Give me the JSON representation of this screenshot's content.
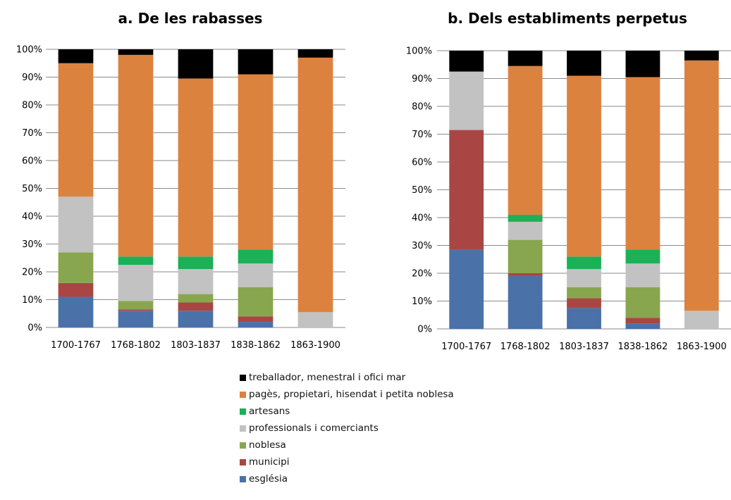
{
  "chart_data": {
    "type": "bar",
    "stacked": true,
    "y_unit": "percent",
    "ylim": [
      0,
      100
    ],
    "yticks": [
      "0%",
      "10%",
      "20%",
      "30%",
      "40%",
      "50%",
      "60%",
      "70%",
      "80%",
      "90%",
      "100%"
    ],
    "categories": [
      "1700-1767",
      "1768-1802",
      "1803-1837",
      "1838-1862",
      "1863-1900"
    ],
    "grid": true,
    "legend_position": "bottom",
    "series_meta": [
      {
        "name": "església",
        "color": "#4a72a8"
      },
      {
        "name": "municipi",
        "color": "#a94643"
      },
      {
        "name": "noblesa",
        "color": "#88a64e"
      },
      {
        "name": "professionals i comerciants",
        "color": "#c2c2c2"
      },
      {
        "name": "artesans",
        "color": "#1bb157"
      },
      {
        "name": "pagès, propietari, hisendat i petita noblesa",
        "color": "#dc823f"
      },
      {
        "name": "treballador, menestral i ofici mar",
        "color": "#000000"
      }
    ],
    "charts": [
      {
        "title": "a. De les rabasses",
        "series": [
          {
            "name": "església",
            "values": [
              11,
              6,
              6,
              2,
              0
            ]
          },
          {
            "name": "municipi",
            "values": [
              5,
              0.5,
              3,
              2,
              0
            ]
          },
          {
            "name": "noblesa",
            "values": [
              11,
              3,
              3,
              10.5,
              0
            ]
          },
          {
            "name": "professionals i comerciants",
            "values": [
              20,
              13,
              9,
              8.5,
              5.5
            ]
          },
          {
            "name": "artesans",
            "values": [
              0,
              3,
              4.5,
              5,
              0
            ]
          },
          {
            "name": "pagès, propietari, hisendat i petita noblesa",
            "values": [
              48,
              72.5,
              64,
              63,
              91.5
            ]
          },
          {
            "name": "treballador, menestral i ofici mar",
            "values": [
              5,
              2,
              10.5,
              9,
              3
            ]
          }
        ]
      },
      {
        "title": "b. Dels establiments perpetus",
        "series": [
          {
            "name": "església",
            "values": [
              28.5,
              19,
              7.5,
              2,
              0
            ]
          },
          {
            "name": "municipi",
            "values": [
              43,
              1,
              3.5,
              2,
              0
            ]
          },
          {
            "name": "noblesa",
            "values": [
              0,
              12,
              4,
              11,
              0
            ]
          },
          {
            "name": "professionals i comerciants",
            "values": [
              21,
              6.5,
              6.5,
              8.5,
              6.5
            ]
          },
          {
            "name": "artesans",
            "values": [
              0,
              2.5,
              4.5,
              5,
              0
            ]
          },
          {
            "name": "pagès, propietari, hisendat i petita noblesa",
            "values": [
              0,
              53.5,
              65,
              62,
              90
            ]
          },
          {
            "name": "treballador, menestral i ofici mar",
            "values": [
              7.5,
              5.5,
              9,
              9.5,
              3.5
            ]
          }
        ]
      }
    ]
  }
}
